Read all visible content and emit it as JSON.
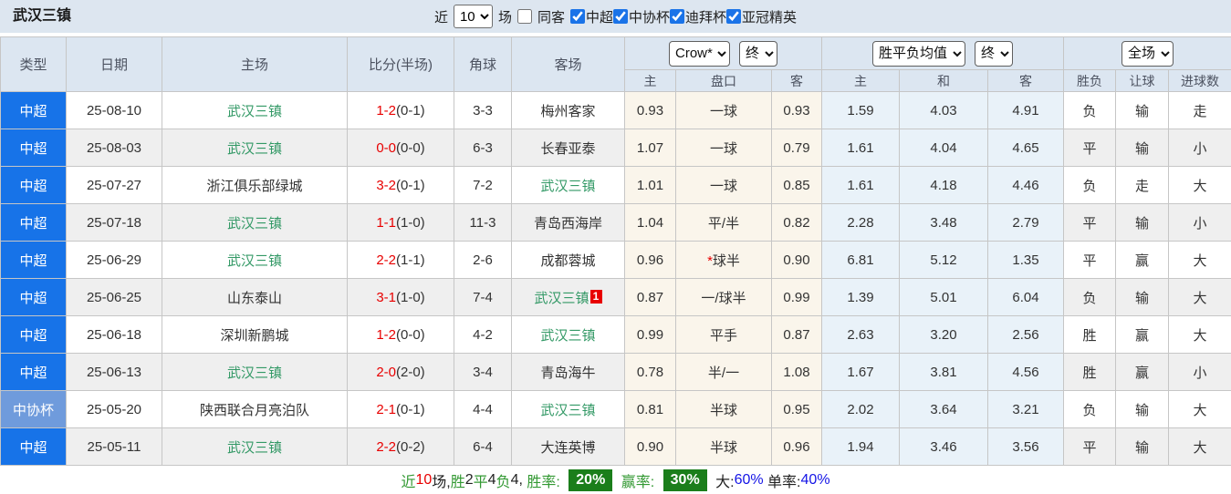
{
  "topbar": {
    "title": "武汉三镇",
    "recent_label": "近",
    "recent_value": "10",
    "matches_label": "场",
    "same_away_label": "同客",
    "same_away_checked": false,
    "filters": [
      {
        "label": "中超",
        "checked": true
      },
      {
        "label": "中协杯",
        "checked": true
      },
      {
        "label": "迪拜杯",
        "checked": true
      },
      {
        "label": "亚冠精英",
        "checked": true
      }
    ]
  },
  "table": {
    "main_headers": [
      "类型",
      "日期",
      "主场",
      "比分(半场)",
      "角球",
      "客场"
    ],
    "odds_group": {
      "source_select": "Crow*",
      "time_select": "终"
    },
    "avg_group": {
      "label_select": "胜平负均值",
      "time_select": "终"
    },
    "scope_group": {
      "scope_select": "全场"
    },
    "sub_headers": [
      "主",
      "盘口",
      "客",
      "主",
      "和",
      "客",
      "胜负",
      "让球",
      "进球数"
    ],
    "rows": [
      {
        "type": "中超",
        "type_kind": "csl",
        "date": "25-08-10",
        "home": "武汉三镇",
        "home_hl": true,
        "score": "1-2",
        "half": "(0-1)",
        "corners": "3-3",
        "away": "梅州客家",
        "away_hl": false,
        "away_badge": "",
        "handicap_star": false,
        "odds": [
          "0.93",
          "一球",
          "0.93"
        ],
        "avg": [
          "1.59",
          "4.03",
          "4.91"
        ],
        "results": [
          [
            "负",
            "g"
          ],
          [
            "输",
            "g"
          ],
          [
            "走",
            "b"
          ]
        ]
      },
      {
        "type": "中超",
        "type_kind": "csl",
        "date": "25-08-03",
        "home": "武汉三镇",
        "home_hl": true,
        "score": "0-0",
        "half": "(0-0)",
        "corners": "6-3",
        "away": "长春亚泰",
        "away_hl": false,
        "away_badge": "",
        "handicap_star": false,
        "odds": [
          "1.07",
          "一球",
          "0.79"
        ],
        "avg": [
          "1.61",
          "4.04",
          "4.65"
        ],
        "results": [
          [
            "平",
            "b"
          ],
          [
            "输",
            "g"
          ],
          [
            "小",
            "g"
          ]
        ]
      },
      {
        "type": "中超",
        "type_kind": "csl",
        "date": "25-07-27",
        "home": "浙江俱乐部绿城",
        "home_hl": false,
        "score": "3-2",
        "half": "(0-1)",
        "corners": "7-2",
        "away": "武汉三镇",
        "away_hl": true,
        "away_badge": "",
        "handicap_star": false,
        "odds": [
          "1.01",
          "一球",
          "0.85"
        ],
        "avg": [
          "1.61",
          "4.18",
          "4.46"
        ],
        "results": [
          [
            "负",
            "g"
          ],
          [
            "走",
            "b"
          ],
          [
            "大",
            "r"
          ]
        ]
      },
      {
        "type": "中超",
        "type_kind": "csl",
        "date": "25-07-18",
        "home": "武汉三镇",
        "home_hl": true,
        "score": "1-1",
        "half": "(1-0)",
        "corners": "11-3",
        "away": "青岛西海岸",
        "away_hl": false,
        "away_badge": "",
        "handicap_star": false,
        "odds": [
          "1.04",
          "平/半",
          "0.82"
        ],
        "avg": [
          "2.28",
          "3.48",
          "2.79"
        ],
        "results": [
          [
            "平",
            "b"
          ],
          [
            "输",
            "g"
          ],
          [
            "小",
            "g"
          ]
        ]
      },
      {
        "type": "中超",
        "type_kind": "csl",
        "date": "25-06-29",
        "home": "武汉三镇",
        "home_hl": true,
        "score": "2-2",
        "half": "(1-1)",
        "corners": "2-6",
        "away": "成都蓉城",
        "away_hl": false,
        "away_badge": "",
        "handicap_star": true,
        "odds": [
          "0.96",
          "球半",
          "0.90"
        ],
        "avg": [
          "6.81",
          "5.12",
          "1.35"
        ],
        "results": [
          [
            "平",
            "b"
          ],
          [
            "赢",
            "r"
          ],
          [
            "大",
            "r"
          ]
        ]
      },
      {
        "type": "中超",
        "type_kind": "csl",
        "date": "25-06-25",
        "home": "山东泰山",
        "home_hl": false,
        "score": "3-1",
        "half": "(1-0)",
        "corners": "7-4",
        "away": "武汉三镇",
        "away_hl": true,
        "away_badge": "1",
        "handicap_star": false,
        "odds": [
          "0.87",
          "一/球半",
          "0.99"
        ],
        "avg": [
          "1.39",
          "5.01",
          "6.04"
        ],
        "results": [
          [
            "负",
            "g"
          ],
          [
            "输",
            "g"
          ],
          [
            "大",
            "r"
          ]
        ]
      },
      {
        "type": "中超",
        "type_kind": "csl",
        "date": "25-06-18",
        "home": "深圳新鹏城",
        "home_hl": false,
        "score": "1-2",
        "half": "(0-0)",
        "corners": "4-2",
        "away": "武汉三镇",
        "away_hl": true,
        "away_badge": "",
        "handicap_star": false,
        "odds": [
          "0.99",
          "平手",
          "0.87"
        ],
        "avg": [
          "2.63",
          "3.20",
          "2.56"
        ],
        "results": [
          [
            "胜",
            "r"
          ],
          [
            "赢",
            "r"
          ],
          [
            "大",
            "r"
          ]
        ]
      },
      {
        "type": "中超",
        "type_kind": "csl",
        "date": "25-06-13",
        "home": "武汉三镇",
        "home_hl": true,
        "score": "2-0",
        "half": "(2-0)",
        "corners": "3-4",
        "away": "青岛海牛",
        "away_hl": false,
        "away_badge": "",
        "handicap_star": false,
        "odds": [
          "0.78",
          "半/一",
          "1.08"
        ],
        "avg": [
          "1.67",
          "3.81",
          "4.56"
        ],
        "results": [
          [
            "胜",
            "r"
          ],
          [
            "赢",
            "r"
          ],
          [
            "小",
            "g"
          ]
        ]
      },
      {
        "type": "中协杯",
        "type_kind": "cup",
        "date": "25-05-20",
        "home": "陕西联合月亮泊队",
        "home_hl": false,
        "score": "2-1",
        "half": "(0-1)",
        "corners": "4-4",
        "away": "武汉三镇",
        "away_hl": true,
        "away_badge": "",
        "handicap_star": false,
        "odds": [
          "0.81",
          "半球",
          "0.95"
        ],
        "avg": [
          "2.02",
          "3.64",
          "3.21"
        ],
        "results": [
          [
            "负",
            "g"
          ],
          [
            "输",
            "g"
          ],
          [
            "大",
            "r"
          ]
        ]
      },
      {
        "type": "中超",
        "type_kind": "csl",
        "date": "25-05-11",
        "home": "武汉三镇",
        "home_hl": true,
        "score": "2-2",
        "half": "(0-2)",
        "corners": "6-4",
        "away": "大连英博",
        "away_hl": false,
        "away_badge": "",
        "handicap_star": false,
        "odds": [
          "0.90",
          "半球",
          "0.96"
        ],
        "avg": [
          "1.94",
          "3.46",
          "3.56"
        ],
        "results": [
          [
            "平",
            "b"
          ],
          [
            "输",
            "g"
          ],
          [
            "大",
            "r"
          ]
        ]
      }
    ]
  },
  "summary": {
    "segments": [
      {
        "text": "近",
        "style": "green"
      },
      {
        "text": "10",
        "style": "red"
      },
      {
        "text": "场,",
        "style": "dark"
      },
      {
        "text": "胜",
        "style": "green"
      },
      {
        "text": "2",
        "style": "dark"
      },
      {
        "text": "平",
        "style": "green"
      },
      {
        "text": "4",
        "style": "dark"
      },
      {
        "text": "负",
        "style": "green"
      },
      {
        "text": "4, ",
        "style": "dark"
      },
      {
        "text": "胜率: ",
        "style": "green"
      },
      {
        "text": "20%",
        "style": "badge"
      },
      {
        "text": " 赢率: ",
        "style": "green"
      },
      {
        "text": "30%",
        "style": "badge"
      },
      {
        "text": " 大:",
        "style": "dark"
      },
      {
        "text": "60%",
        "style": "blue"
      },
      {
        "text": " 单率:",
        "style": "dark"
      },
      {
        "text": "40%",
        "style": "blue"
      }
    ]
  },
  "colors": {
    "type_csl_blue": "#1773e8",
    "type_cup_blue": "#6f9bdc",
    "team_highlight_green": "#339966",
    "score_red": "#e80000",
    "result_win_red": "#e25555",
    "result_draw_blue": "#5050e6",
    "result_lose_green": "#5e9c5e",
    "percent_badge_green": "#1b7e1b",
    "percent_blue": "#1414e6",
    "header_bg": "#dce6f1",
    "odds_col_bg": "#faf5eb",
    "avg_col_bg": "#e9f2f9"
  }
}
